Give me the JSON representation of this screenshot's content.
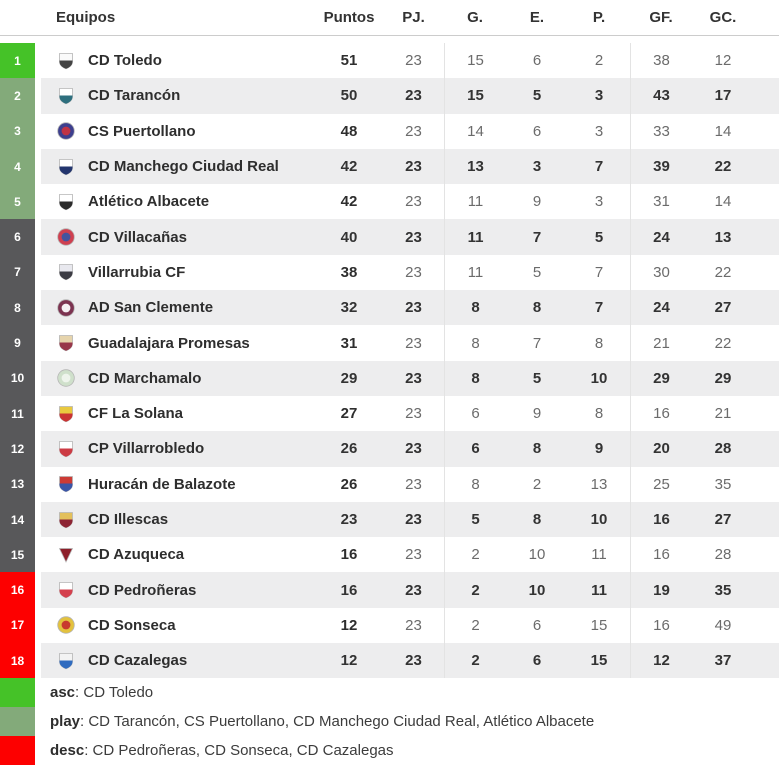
{
  "table": {
    "columns": {
      "team": "Equipos",
      "points": "Puntos",
      "played": "PJ.",
      "won": "G.",
      "drawn": "E.",
      "lost": "P.",
      "gf": "GF.",
      "gc": "GC."
    },
    "rows": [
      {
        "pos": 1,
        "zone": "asc",
        "team": "CD Toledo",
        "points": 51,
        "played": 23,
        "won": 15,
        "drawn": 6,
        "lost": 2,
        "gf": 38,
        "gc": 12,
        "crest": {
          "shape": "shield",
          "primary": "#444444",
          "secondary": "#fafafa"
        }
      },
      {
        "pos": 2,
        "zone": "play",
        "team": "CD Tarancón",
        "points": 50,
        "played": 23,
        "won": 15,
        "drawn": 5,
        "lost": 3,
        "gf": 43,
        "gc": 17,
        "crest": {
          "shape": "shield",
          "primary": "#2e6f7e",
          "secondary": "#ffffff"
        }
      },
      {
        "pos": 3,
        "zone": "play",
        "team": "CS Puertollano",
        "points": 48,
        "played": 23,
        "won": 14,
        "drawn": 6,
        "lost": 3,
        "gf": 33,
        "gc": 14,
        "crest": {
          "shape": "circle",
          "primary": "#c03344",
          "secondary": "#3d3f8e"
        }
      },
      {
        "pos": 4,
        "zone": "play",
        "team": "CD Manchego Ciudad Real",
        "points": 42,
        "played": 23,
        "won": 13,
        "drawn": 3,
        "lost": 7,
        "gf": 39,
        "gc": 22,
        "crest": {
          "shape": "shield",
          "primary": "#23356e",
          "secondary": "#ffffff"
        }
      },
      {
        "pos": 5,
        "zone": "play",
        "team": "Atlético Albacete",
        "points": 42,
        "played": 23,
        "won": 11,
        "drawn": 9,
        "lost": 3,
        "gf": 31,
        "gc": 14,
        "crest": {
          "shape": "shield",
          "primary": "#2b2b2b",
          "secondary": "#ffffff"
        }
      },
      {
        "pos": 6,
        "zone": "none",
        "team": "CD Villacañas",
        "points": 40,
        "played": 23,
        "won": 11,
        "drawn": 7,
        "lost": 5,
        "gf": 24,
        "gc": 13,
        "crest": {
          "shape": "circle",
          "primary": "#44549e",
          "secondary": "#cf4050"
        }
      },
      {
        "pos": 7,
        "zone": "none",
        "team": "Villarrubia CF",
        "points": 38,
        "played": 23,
        "won": 11,
        "drawn": 5,
        "lost": 7,
        "gf": 30,
        "gc": 22,
        "crest": {
          "shape": "shield",
          "primary": "#3c3c44",
          "secondary": "#e8e8ee"
        }
      },
      {
        "pos": 8,
        "zone": "none",
        "team": "AD San Clemente",
        "points": 32,
        "played": 23,
        "won": 8,
        "drawn": 8,
        "lost": 7,
        "gf": 24,
        "gc": 27,
        "crest": {
          "shape": "circle",
          "primary": "#f5f0f3",
          "secondary": "#7c3350"
        }
      },
      {
        "pos": 9,
        "zone": "none",
        "team": "Guadalajara Promesas",
        "points": 31,
        "played": 23,
        "won": 8,
        "drawn": 7,
        "lost": 8,
        "gf": 21,
        "gc": 22,
        "crest": {
          "shape": "shield",
          "primary": "#98374a",
          "secondary": "#e6d4ac"
        }
      },
      {
        "pos": 10,
        "zone": "none",
        "team": "CD Marchamalo",
        "points": 29,
        "played": 23,
        "won": 8,
        "drawn": 5,
        "lost": 10,
        "gf": 29,
        "gc": 29,
        "crest": {
          "shape": "circle",
          "primary": "#eef4ec",
          "secondary": "#cfe0cb"
        }
      },
      {
        "pos": 11,
        "zone": "none",
        "team": "CF La Solana",
        "points": 27,
        "played": 23,
        "won": 6,
        "drawn": 9,
        "lost": 8,
        "gf": 16,
        "gc": 21,
        "crest": {
          "shape": "shield",
          "primary": "#ca3333",
          "secondary": "#e9c93f"
        }
      },
      {
        "pos": 12,
        "zone": "none",
        "team": "CP Villarrobledo",
        "points": 26,
        "played": 23,
        "won": 6,
        "drawn": 8,
        "lost": 9,
        "gf": 20,
        "gc": 28,
        "crest": {
          "shape": "shield",
          "primary": "#cc3b44",
          "secondary": "#ffffff"
        }
      },
      {
        "pos": 13,
        "zone": "none",
        "team": "Huracán de Balazote",
        "points": 26,
        "played": 23,
        "won": 8,
        "drawn": 2,
        "lost": 13,
        "gf": 25,
        "gc": 35,
        "crest": {
          "shape": "shield",
          "primary": "#3a56a8",
          "secondary": "#cc3b35"
        }
      },
      {
        "pos": 14,
        "zone": "none",
        "team": "CD Illescas",
        "points": 23,
        "played": 23,
        "won": 5,
        "drawn": 8,
        "lost": 10,
        "gf": 16,
        "gc": 27,
        "crest": {
          "shape": "shield",
          "primary": "#8d2433",
          "secondary": "#e3c05b"
        }
      },
      {
        "pos": 15,
        "zone": "none",
        "team": "CD Azuqueca",
        "points": 16,
        "played": 23,
        "won": 2,
        "drawn": 10,
        "lost": 11,
        "gf": 16,
        "gc": 28,
        "crest": {
          "shape": "triangle",
          "primary": "#8d1f2a",
          "secondary": "#ffffff"
        }
      },
      {
        "pos": 16,
        "zone": "desc",
        "team": "CD Pedroñeras",
        "points": 16,
        "played": 23,
        "won": 2,
        "drawn": 10,
        "lost": 11,
        "gf": 19,
        "gc": 35,
        "crest": {
          "shape": "shield",
          "primary": "#d4404d",
          "secondary": "#ffffff"
        }
      },
      {
        "pos": 17,
        "zone": "desc",
        "team": "CD Sonseca",
        "points": 12,
        "played": 23,
        "won": 2,
        "drawn": 6,
        "lost": 15,
        "gf": 16,
        "gc": 49,
        "crest": {
          "shape": "circle",
          "primary": "#c8392e",
          "secondary": "#e3c23e"
        }
      },
      {
        "pos": 18,
        "zone": "desc",
        "team": "CD Cazalegas",
        "points": 12,
        "played": 23,
        "won": 2,
        "drawn": 6,
        "lost": 15,
        "gf": 12,
        "gc": 37,
        "crest": {
          "shape": "shield",
          "primary": "#2f6bbf",
          "secondary": "#f3f3f3"
        }
      }
    ]
  },
  "legend": [
    {
      "key": "asc",
      "label": "asc",
      "teams": "CD Toledo"
    },
    {
      "key": "play",
      "label": "play",
      "teams": "CD Tarancón, CS Puertollano, CD Manchego Ciudad Real, Atlético Albacete"
    },
    {
      "key": "desc",
      "label": "desc",
      "teams": "CD Pedroñeras, CD Sonseca, CD Cazalegas"
    }
  ],
  "legend_separator": ": ",
  "zone_colors": {
    "asc": "#45c228",
    "play": "#83aa7a",
    "none": "#58585a",
    "desc": "#fd0000"
  },
  "ui_colors": {
    "zebra": "#ededee",
    "header_border": "#cccccc",
    "column_separator": "#e3e3e3"
  }
}
